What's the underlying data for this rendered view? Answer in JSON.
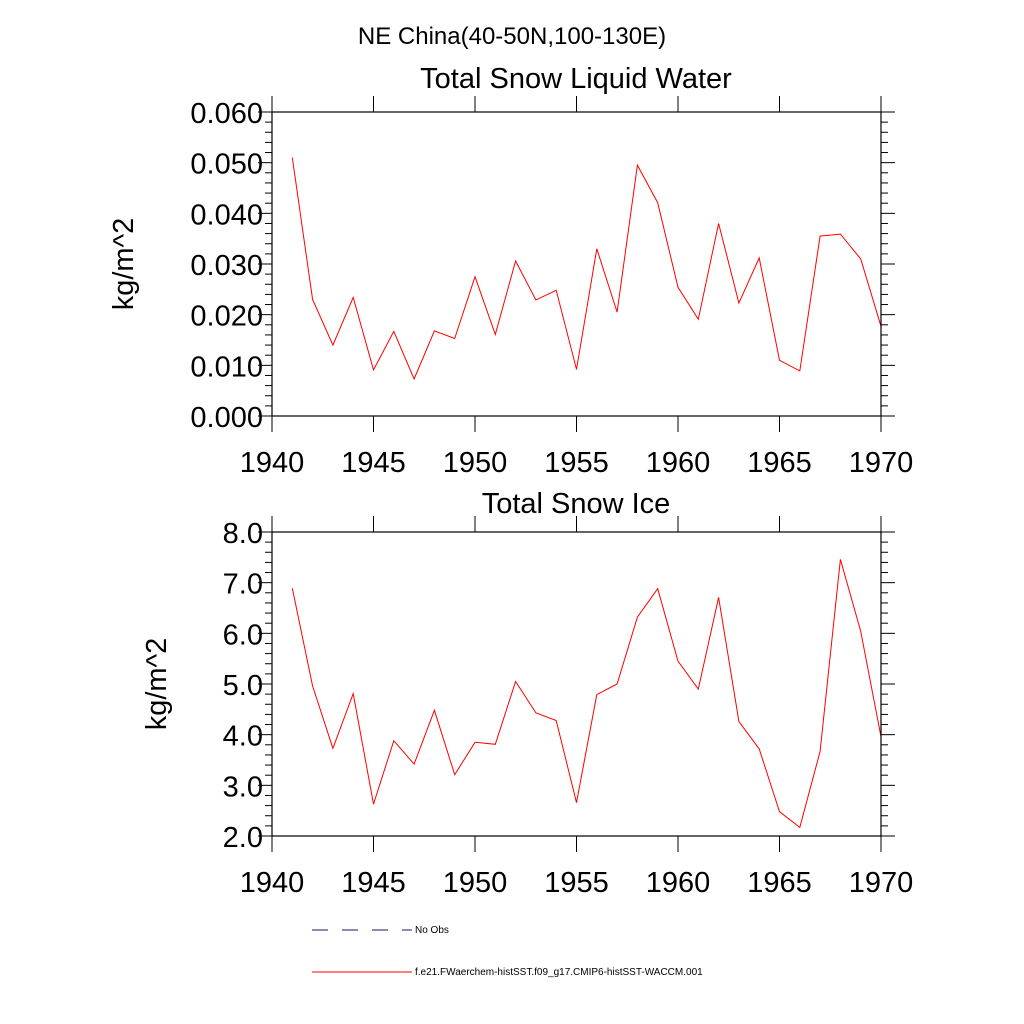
{
  "figure": {
    "title": "NE China(40-50N,100-130E)",
    "legend": {
      "placement": "bottom-left",
      "entries": [
        {
          "label": "No Obs",
          "color": "#1a1a66",
          "dash": "dashed"
        },
        {
          "label": "f.e21.FWaerchem-histSST.f09_g17.CMIP6-histSST-WACCM.001",
          "color": "#ff0000",
          "dash": "solid"
        }
      ]
    }
  },
  "chart_data": [
    {
      "type": "line",
      "title": "Total Snow Liquid Water",
      "xlabel": "",
      "ylabel": "kg/m^2",
      "xlim": [
        1940,
        1970
      ],
      "ylim": [
        0.0,
        0.06
      ],
      "x_ticks": [
        1940,
        1945,
        1950,
        1955,
        1960,
        1965,
        1970
      ],
      "x_tick_labels": [
        "1940",
        "1945",
        "1950",
        "1955",
        "1960",
        "1965",
        "1970"
      ],
      "y_ticks": [
        0.0,
        0.01,
        0.02,
        0.03,
        0.04,
        0.05,
        0.06
      ],
      "y_tick_labels": [
        "0.000",
        "0.010",
        "0.020",
        "0.030",
        "0.040",
        "0.050",
        "0.060"
      ],
      "grid": false,
      "series": [
        {
          "name": "f.e21.FWaerchem-histSST.f09_g17.CMIP6-histSST-WACCM.001",
          "color": "#ff0000",
          "x": [
            1941,
            1942,
            1943,
            1944,
            1945,
            1946,
            1947,
            1948,
            1949,
            1950,
            1951,
            1952,
            1953,
            1954,
            1955,
            1956,
            1957,
            1958,
            1959,
            1960,
            1961,
            1962,
            1963,
            1964,
            1965,
            1966,
            1967,
            1968,
            1969,
            1970
          ],
          "values": [
            0.051,
            0.023,
            0.014,
            0.0234,
            0.0091,
            0.0167,
            0.0073,
            0.0168,
            0.0153,
            0.0275,
            0.0161,
            0.0306,
            0.0229,
            0.0248,
            0.0092,
            0.033,
            0.0205,
            0.0495,
            0.0421,
            0.0254,
            0.0191,
            0.038,
            0.0223,
            0.0312,
            0.011,
            0.0089,
            0.0355,
            0.0359,
            0.031,
            0.0177
          ]
        }
      ]
    },
    {
      "type": "line",
      "title": "Total Snow Ice",
      "xlabel": "",
      "ylabel": "kg/m^2",
      "xlim": [
        1940,
        1970
      ],
      "ylim": [
        2.0,
        8.0
      ],
      "x_ticks": [
        1940,
        1945,
        1950,
        1955,
        1960,
        1965,
        1970
      ],
      "x_tick_labels": [
        "1940",
        "1945",
        "1950",
        "1955",
        "1960",
        "1965",
        "1970"
      ],
      "y_ticks": [
        2,
        3,
        4,
        5,
        6,
        7,
        8
      ],
      "y_tick_labels": [
        "2.0",
        "3.0",
        "4.0",
        "5.0",
        "6.0",
        "7.0",
        "8.0"
      ],
      "grid": false,
      "series": [
        {
          "name": "f.e21.FWaerchem-histSST.f09_g17.CMIP6-histSST-WACCM.001",
          "color": "#ff0000",
          "x": [
            1941,
            1942,
            1943,
            1944,
            1945,
            1946,
            1947,
            1948,
            1949,
            1950,
            1951,
            1952,
            1953,
            1954,
            1955,
            1956,
            1957,
            1958,
            1959,
            1960,
            1961,
            1962,
            1963,
            1964,
            1965,
            1966,
            1967,
            1968,
            1969,
            1970
          ],
          "values": [
            6.89,
            4.96,
            3.73,
            4.81,
            2.63,
            3.88,
            3.42,
            4.48,
            3.21,
            3.85,
            3.81,
            5.05,
            4.43,
            4.28,
            2.66,
            4.79,
            5.0,
            6.32,
            6.88,
            5.45,
            4.9,
            6.71,
            4.26,
            3.72,
            2.48,
            2.17,
            3.67,
            7.46,
            6.04,
            3.96
          ]
        }
      ]
    }
  ]
}
